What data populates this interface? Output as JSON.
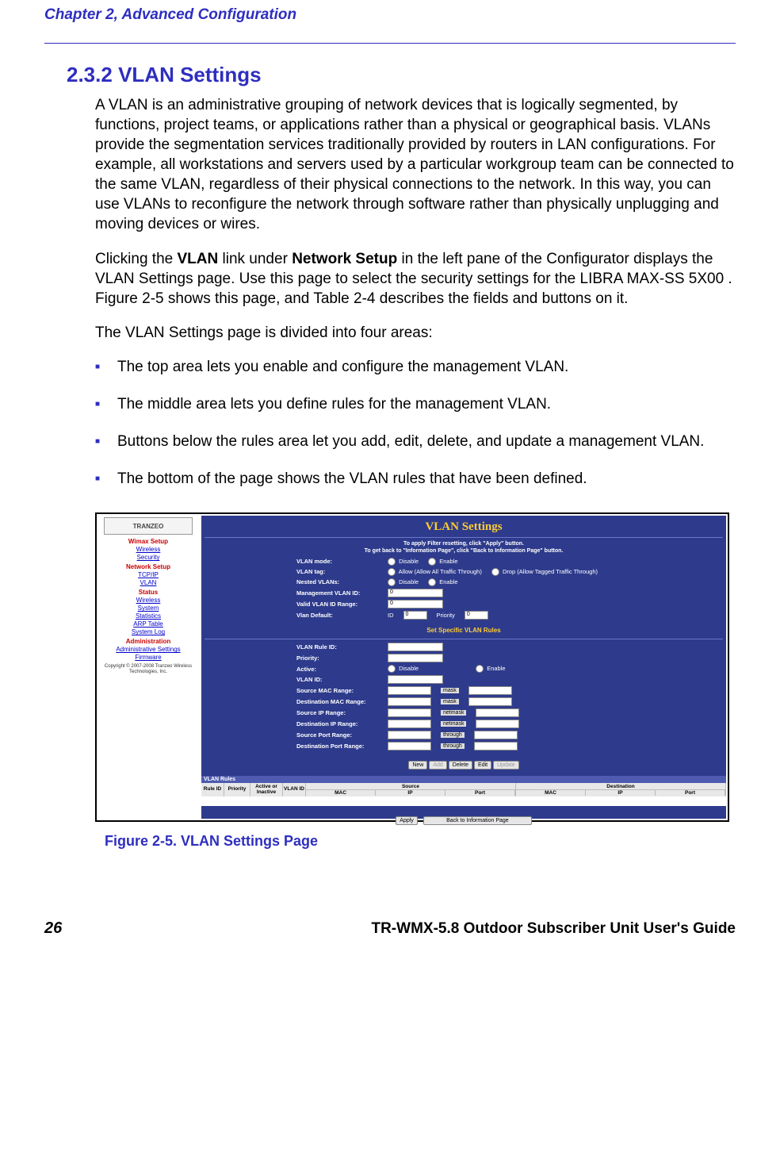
{
  "header": {
    "chapter": "Chapter 2, Advanced Configuration"
  },
  "section": {
    "number": "2.3.2",
    "title": "VLAN Settings",
    "para1": "A VLAN is an administrative grouping of network devices that is logically segmented, by functions, project teams, or applications rather than a physical or geographical basis. VLANs provide the segmentation services traditionally provided by routers in LAN configurations. For example, all workstations and servers used by a particular workgroup team can be connected to the same VLAN, regardless of their physical connections to the network. In this way, you can use VLANs to reconfigure the network through software rather than physically unplugging and moving devices or wires.",
    "para2_a": "Clicking the ",
    "para2_b1": "VLAN",
    "para2_c": " link under ",
    "para2_b2": "Network Setup",
    "para2_d": " in the left pane of the Configurator displays the VLAN Settings page. Use this page to select the security settings for the LIBRA MAX-SS 5X00 . Figure 2-5 shows this page, and Table 2-4 describes the fields and buttons on it.",
    "para3": "The VLAN Settings page is divided into four areas:",
    "bullets": [
      "The top area lets you enable and configure the management VLAN.",
      "The middle area lets you define rules for the management VLAN.",
      "Buttons below the rules area let you add, edit, delete, and update a management VLAN.",
      "The bottom of the page shows the VLAN rules that have been defined."
    ]
  },
  "screenshot": {
    "logo": "TRANZEO",
    "sidebar": {
      "groups": [
        {
          "label": "Wimax Setup",
          "links": [
            "Wireless",
            "Security"
          ]
        },
        {
          "label": "Network Setup",
          "links": [
            "TCP/IP",
            "VLAN"
          ]
        },
        {
          "label": "Status",
          "links": [
            "Wireless",
            "System",
            "Statistics",
            "ARP Table",
            "System Log"
          ]
        },
        {
          "label": "Administration",
          "links": [
            "Administrative Settings",
            "Firmware"
          ]
        }
      ],
      "copyright": "Copyright © 2007-2008 Tranzeo Wireless Technologies, Inc."
    },
    "panel_title": "VLAN Settings",
    "notice_l1": "To apply Filter resetting, click \"Apply\" button.",
    "notice_l2": "To get back to \"Information Page\", click \"Back to Information Page\" button.",
    "rows1": [
      {
        "label": "VLAN mode:",
        "opts": [
          "Disable",
          "Enable"
        ]
      },
      {
        "label": "VLAN tag:",
        "opts": [
          "Allow (Allow All Traffic Through)",
          "Drop (Allow Tagged Traffic Through)"
        ]
      },
      {
        "label": "Nested VLANs:",
        "opts": [
          "Disable",
          "Enable"
        ]
      }
    ],
    "rows1b": [
      {
        "label": "Management VLAN ID:",
        "value": "0"
      },
      {
        "label": "Valid VLAN ID Range:",
        "value": "0"
      }
    ],
    "vlan_default": {
      "label": "Vlan Default:",
      "id_lbl": "ID",
      "id_val": "0",
      "pr_lbl": "Priority",
      "pr_val": "0"
    },
    "subheader": "Set Specific VLAN Rules",
    "rows2": [
      {
        "label": "VLAN Rule ID:",
        "kind": "text"
      },
      {
        "label": "Priority:",
        "kind": "text"
      },
      {
        "label": "Active:",
        "kind": "radio",
        "opts": [
          "Disable",
          "Enable"
        ]
      },
      {
        "label": "VLAN ID:",
        "kind": "text"
      },
      {
        "label": "Source MAC Range:",
        "kind": "pair",
        "sep": "mask"
      },
      {
        "label": "Destination MAC Range:",
        "kind": "pair",
        "sep": "mask"
      },
      {
        "label": "Source IP Range:",
        "kind": "pair",
        "sep": "netmask"
      },
      {
        "label": "Destination IP Range:",
        "kind": "pair",
        "sep": "netmask"
      },
      {
        "label": "Source Port Range:",
        "kind": "pair",
        "sep": "through"
      },
      {
        "label": "Destination Port Range:",
        "kind": "pair",
        "sep": "through"
      }
    ],
    "action_buttons": [
      "New",
      "Add",
      "Delete",
      "Edit",
      "Update"
    ],
    "rules_header": "VLAN Rules",
    "rules_cols": [
      "Rule ID",
      "Priority",
      "Active or Inactive",
      "VLAN ID",
      "Source",
      "Destination"
    ],
    "rules_sub": [
      "MAC",
      "IP",
      "Port",
      "MAC",
      "IP",
      "Port"
    ],
    "footer_btns": [
      "Apply",
      "Back to Information Page"
    ]
  },
  "figure": {
    "caption": "Figure 2-5. VLAN Settings Page"
  },
  "footer": {
    "page": "26",
    "guide": "TR-WMX-5.8 Outdoor Subscriber Unit User's Guide"
  }
}
